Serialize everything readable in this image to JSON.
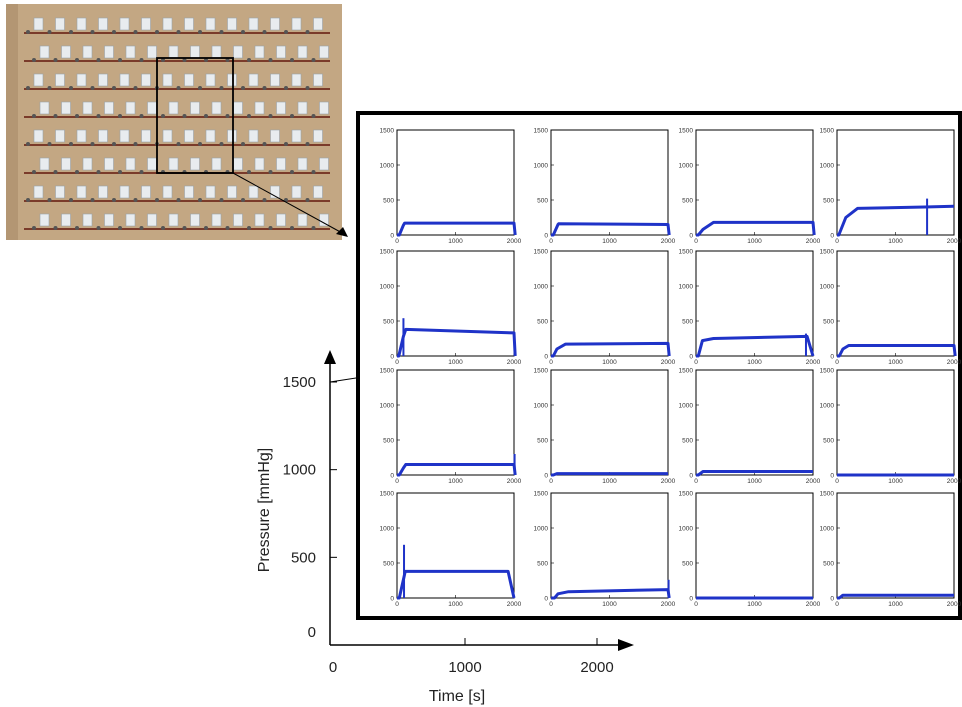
{
  "colors": {
    "series": "#1f33c8",
    "board": "#c3a783",
    "rail": "#7a3b2a",
    "sensor": "#e8ecef"
  },
  "axis": {
    "y_label": "Pressure [mmHg]",
    "x_label": "Time [s]",
    "y_ticks": [
      "0",
      "500",
      "1000",
      "1500"
    ],
    "x_ticks": [
      "0",
      "1000",
      "2000"
    ]
  },
  "photo": {
    "icon": "sensor-array-photo",
    "rows": 8,
    "cols": 14
  },
  "chart_data": {
    "type": "line",
    "layout": "4x4 grid of panels",
    "xlim": [
      0,
      2000
    ],
    "ylim": [
      0,
      1500
    ],
    "xlabel": "Time [s]",
    "ylabel": "Pressure [mmHg]",
    "panel_y_ticks": [
      "0",
      "500",
      "1000",
      "1500"
    ],
    "panel_x_ticks": [
      "0",
      "1000",
      "2000"
    ],
    "panels": [
      {
        "x": [
          0,
          40,
          110,
          130,
          2000,
          2020
        ],
        "y": [
          0,
          0,
          140,
          170,
          170,
          0
        ],
        "spike": null
      },
      {
        "x": [
          0,
          40,
          120,
          130,
          2000,
          2020
        ],
        "y": [
          0,
          0,
          150,
          160,
          150,
          0
        ],
        "spike": null
      },
      {
        "x": [
          0,
          40,
          120,
          300,
          2000,
          2020
        ],
        "y": [
          0,
          0,
          80,
          180,
          180,
          0
        ],
        "spike": null
      },
      {
        "x": [
          0,
          30,
          150,
          350,
          1500,
          2000
        ],
        "y": [
          0,
          0,
          250,
          380,
          400,
          410
        ],
        "spike": {
          "x": 1540,
          "y": 520
        }
      },
      {
        "x": [
          0,
          30,
          110,
          150,
          2000,
          2020
        ],
        "y": [
          0,
          0,
          280,
          380,
          330,
          0
        ],
        "spike": {
          "x": 110,
          "y": 540
        }
      },
      {
        "x": [
          0,
          40,
          100,
          250,
          2000,
          2020
        ],
        "y": [
          0,
          0,
          100,
          170,
          180,
          0
        ],
        "spike": null
      },
      {
        "x": [
          0,
          40,
          110,
          300,
          1900,
          2000
        ],
        "y": [
          0,
          0,
          220,
          250,
          280,
          0
        ],
        "spike": {
          "x": 1880,
          "y": 320
        }
      },
      {
        "x": [
          0,
          40,
          100,
          200,
          2000,
          2020
        ],
        "y": [
          0,
          0,
          100,
          150,
          150,
          0
        ],
        "spike": null
      },
      {
        "x": [
          0,
          40,
          110,
          150,
          2000,
          2020
        ],
        "y": [
          0,
          0,
          100,
          150,
          150,
          0
        ],
        "spike": {
          "x": 2010,
          "y": 300
        }
      },
      {
        "x": [
          0,
          40,
          100,
          2000
        ],
        "y": [
          0,
          0,
          20,
          20
        ],
        "spike": null
      },
      {
        "x": [
          0,
          40,
          120,
          2000
        ],
        "y": [
          0,
          0,
          50,
          50
        ],
        "spike": null
      },
      {
        "x": [
          0,
          2000
        ],
        "y": [
          0,
          0
        ],
        "spike": null
      },
      {
        "x": [
          0,
          40,
          120,
          140,
          1900,
          2000
        ],
        "y": [
          0,
          0,
          300,
          380,
          380,
          0
        ],
        "spike": {
          "x": 120,
          "y": 760
        }
      },
      {
        "x": [
          0,
          60,
          120,
          300,
          2000,
          2020
        ],
        "y": [
          0,
          0,
          60,
          90,
          120,
          0
        ],
        "spike": {
          "x": 2010,
          "y": 260
        }
      },
      {
        "x": [
          0,
          2000
        ],
        "y": [
          0,
          0
        ],
        "spike": null
      },
      {
        "x": [
          0,
          40,
          100,
          2000
        ],
        "y": [
          0,
          0,
          40,
          40
        ],
        "spike": null
      }
    ]
  }
}
